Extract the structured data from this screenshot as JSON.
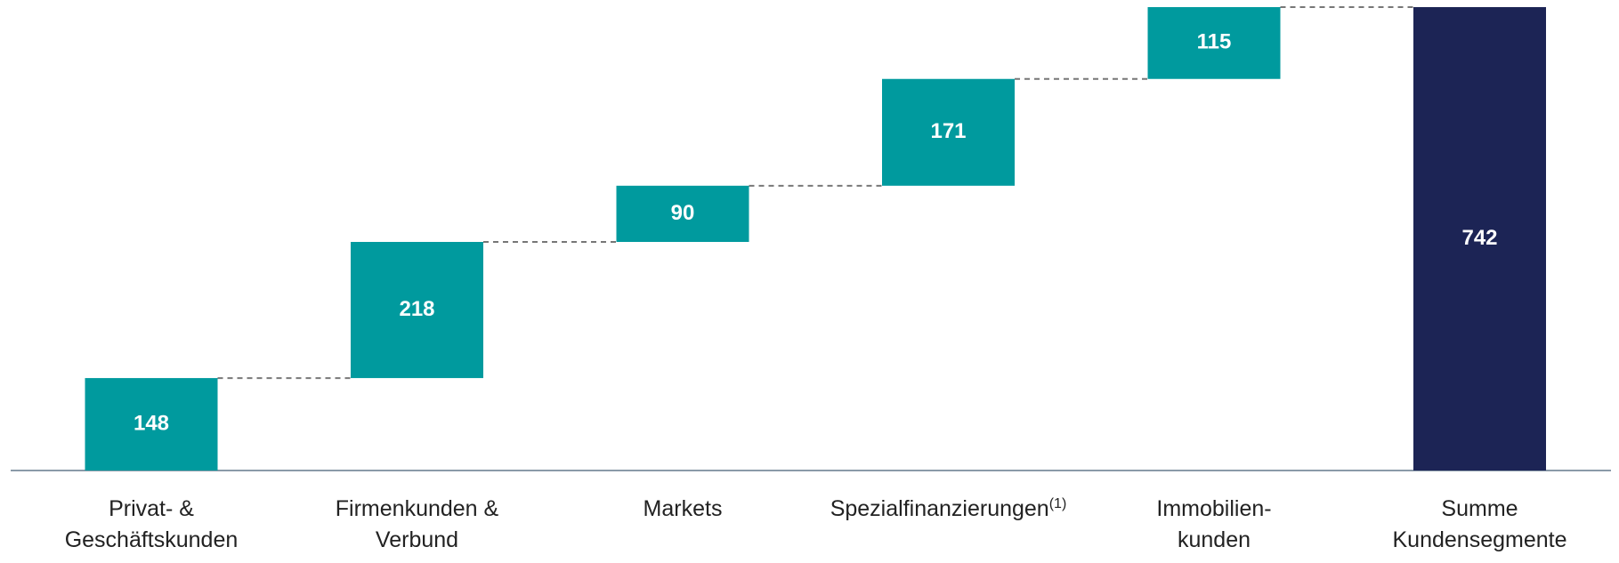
{
  "chart_data": {
    "type": "waterfall",
    "categories": [
      [
        "Privat- &",
        "Geschäftskunden"
      ],
      [
        "Firmenkunden &",
        "Verbund"
      ],
      [
        "Markets"
      ],
      [
        "Spezialfinanzierungen"
      ],
      [
        "Immobilien-",
        "kunden"
      ],
      [
        "Summe",
        "Kundensegmente"
      ]
    ],
    "category_notes": [
      null,
      null,
      null,
      "(1)",
      null,
      null
    ],
    "values": [
      148,
      218,
      90,
      171,
      115,
      742
    ],
    "kinds": [
      "delta",
      "delta",
      "delta",
      "delta",
      "delta",
      "total"
    ],
    "colors": {
      "delta": "#009a9e",
      "total": "#1c2455"
    },
    "ylim": [
      0,
      742
    ]
  }
}
